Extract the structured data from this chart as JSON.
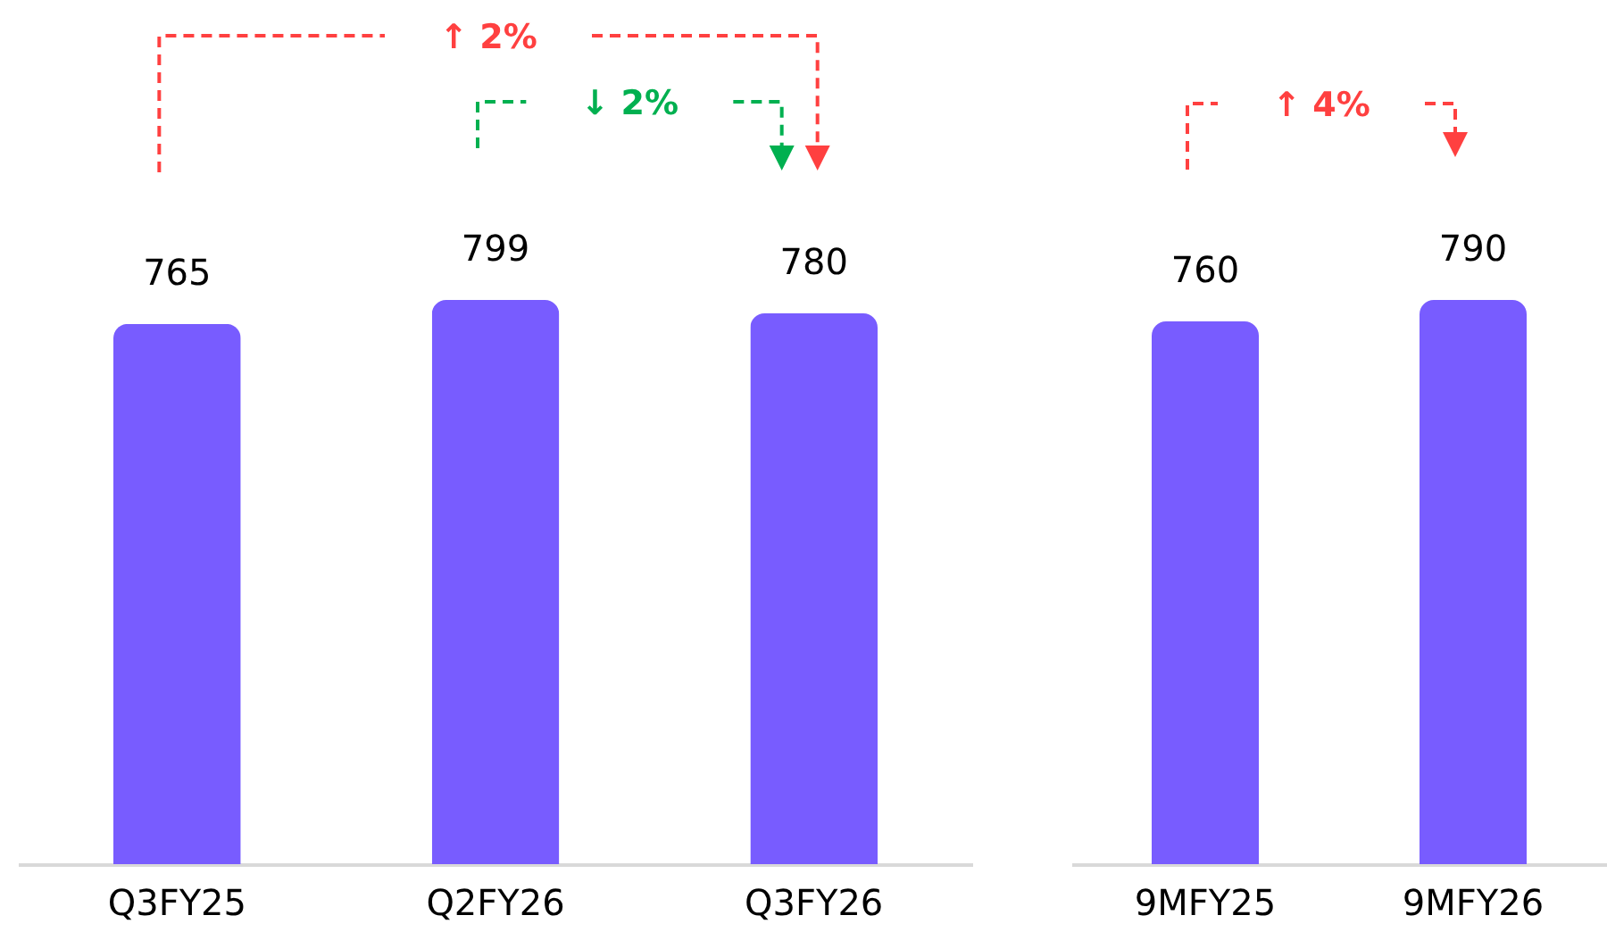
{
  "chart_data": [
    {
      "type": "bar",
      "categories": [
        "Q3FY25",
        "Q2FY26",
        "Q3FY26"
      ],
      "values": [
        765,
        799,
        780
      ],
      "color": "#785cff",
      "data_labels": true,
      "annotations": [
        "↑ 2%",
        "↓ 2%"
      ]
    },
    {
      "type": "bar",
      "categories": [
        "9MFY25",
        "9MFY26"
      ],
      "values": [
        760,
        790
      ],
      "color": "#785cff",
      "data_labels": true,
      "annotations": [
        "↑ 4%"
      ]
    }
  ]
}
